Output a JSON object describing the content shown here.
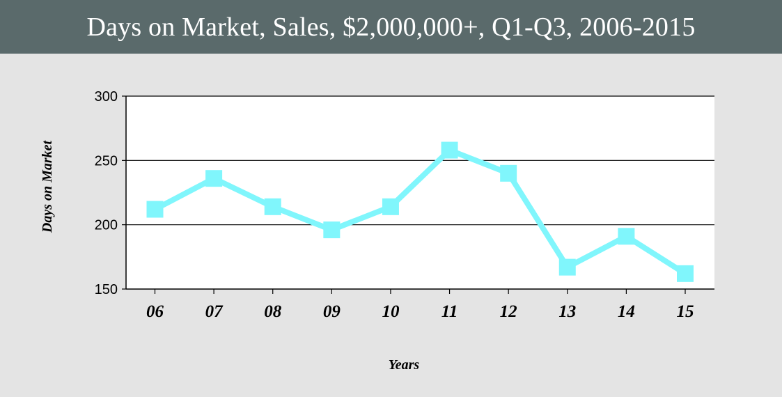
{
  "header": {
    "title": "Days on Market, Sales, $2,000,000+, Q1-Q3, 2006-2015"
  },
  "colors": {
    "header_bg": "#5a6a6b",
    "page_bg": "#e4e4e4",
    "plot_bg": "#ffffff",
    "series": "#80f6fc"
  },
  "chart_data": {
    "type": "line",
    "title": "Days on Market, Sales, $2,000,000+, Q1-Q3, 2006-2015",
    "xlabel": "Years",
    "ylabel": "Days on Market",
    "categories": [
      "06",
      "07",
      "08",
      "09",
      "10",
      "11",
      "12",
      "13",
      "14",
      "15"
    ],
    "series": [
      {
        "values": [
          212,
          236,
          214,
          196,
          214,
          258,
          240,
          167,
          191,
          162
        ]
      }
    ],
    "ylim": [
      150,
      300
    ],
    "yticks": [
      150,
      200,
      250,
      300
    ],
    "grid": true,
    "marker": "square"
  }
}
